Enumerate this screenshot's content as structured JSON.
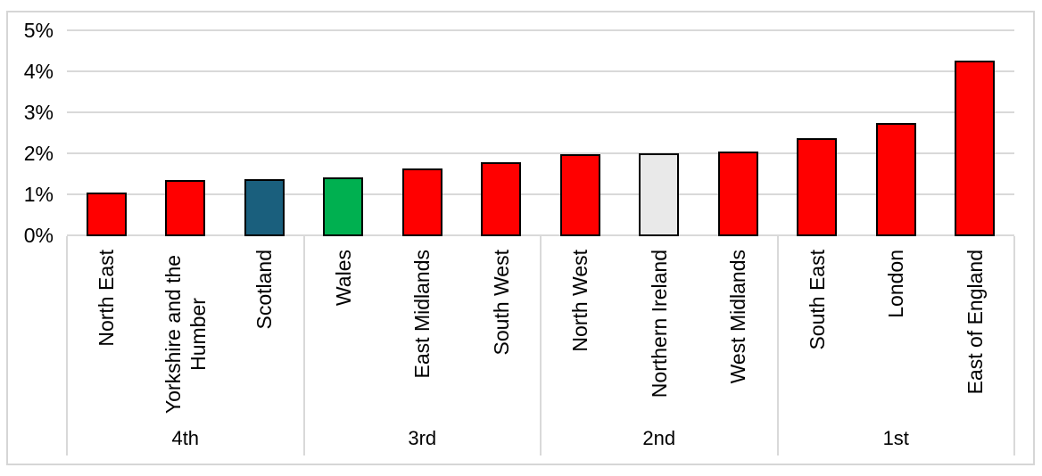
{
  "chart_data": {
    "type": "bar",
    "title": "",
    "xlabel": "",
    "ylabel": "",
    "ylim": [
      0,
      5
    ],
    "y_tick_labels": [
      "0%",
      "1%",
      "2%",
      "3%",
      "4%",
      "5%"
    ],
    "grid": true,
    "legend": false,
    "value_unit": "percent",
    "categories": [
      "North East",
      "Yorkshire and the Humber",
      "Scotland",
      "Wales",
      "East Midlands",
      "South West",
      "North West",
      "Northern Ireland",
      "West Midlands",
      "South East",
      "London",
      "East of England"
    ],
    "values": [
      1.05,
      1.35,
      1.37,
      1.41,
      1.63,
      1.78,
      1.98,
      2.0,
      2.04,
      2.37,
      2.73,
      4.25
    ],
    "groups": [
      {
        "label": "4th",
        "bars": [
          {
            "region": "North East",
            "value": 1.05,
            "color": "#FF0000"
          },
          {
            "region": "Yorkshire and the Humber",
            "value": 1.35,
            "color": "#FF0000"
          },
          {
            "region": "Scotland",
            "value": 1.37,
            "color": "#1A5F7D"
          }
        ]
      },
      {
        "label": "3rd",
        "bars": [
          {
            "region": "Wales",
            "value": 1.41,
            "color": "#00B050"
          },
          {
            "region": "East Midlands",
            "value": 1.63,
            "color": "#FF0000"
          },
          {
            "region": "South West",
            "value": 1.78,
            "color": "#FF0000"
          }
        ]
      },
      {
        "label": "2nd",
        "bars": [
          {
            "region": "North West",
            "value": 1.98,
            "color": "#FF0000"
          },
          {
            "region": "Northern Ireland",
            "value": 2.0,
            "color": "#E9E9E9"
          },
          {
            "region": "West Midlands",
            "value": 2.04,
            "color": "#FF0000"
          }
        ]
      },
      {
        "label": "1st",
        "bars": [
          {
            "region": "South East",
            "value": 2.37,
            "color": "#FF0000"
          },
          {
            "region": "London",
            "value": 2.73,
            "color": "#FF0000"
          },
          {
            "region": "East of England",
            "value": 4.25,
            "color": "#FF0000"
          }
        ]
      }
    ],
    "colors": {
      "default_bar": "#FF0000",
      "scotland_bar": "#1A5F7D",
      "wales_bar": "#00B050",
      "northern_ireland_bar": "#E9E9E9",
      "bar_border": "#000000",
      "gridline": "#D9D9D9",
      "chart_border": "#D6D6D6",
      "text": "#000000"
    }
  }
}
